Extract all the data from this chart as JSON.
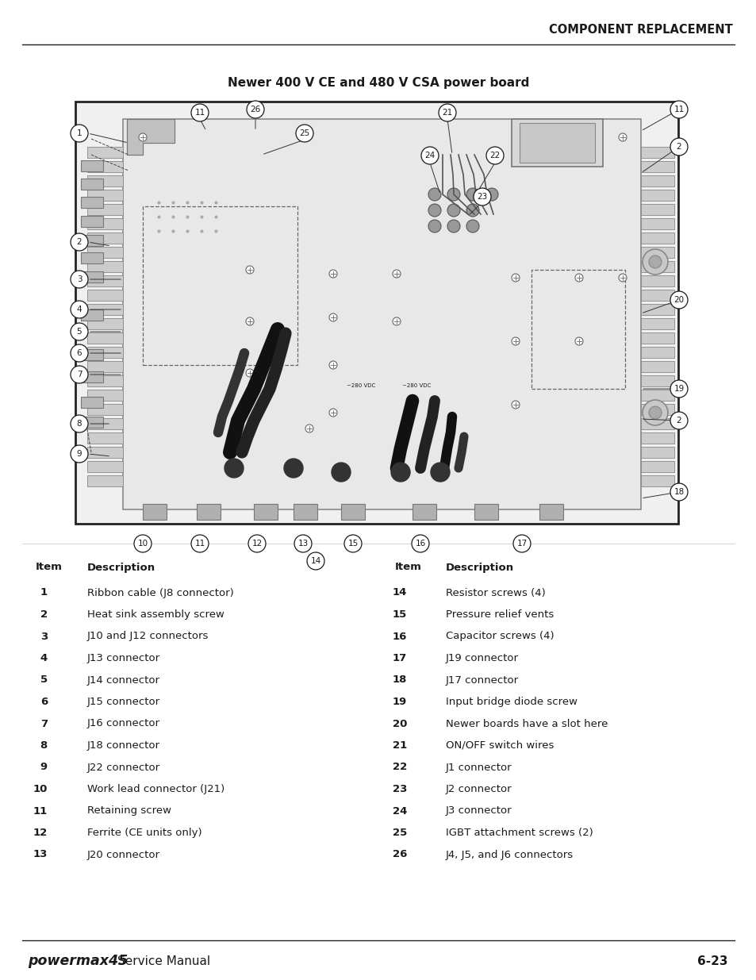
{
  "page_title": "COMPONENT REPLACEMENT",
  "diagram_title": "Newer 400 V CE and 480 V CSA power board",
  "items_left": [
    {
      "num": "1",
      "desc": "Ribbon cable (J8 connector)"
    },
    {
      "num": "2",
      "desc": "Heat sink assembly screw"
    },
    {
      "num": "3",
      "desc": "J10 and J12 connectors"
    },
    {
      "num": "4",
      "desc": "J13 connector"
    },
    {
      "num": "5",
      "desc": "J14 connector"
    },
    {
      "num": "6",
      "desc": "J15 connector"
    },
    {
      "num": "7",
      "desc": "J16 connector"
    },
    {
      "num": "8",
      "desc": "J18 connector"
    },
    {
      "num": "9",
      "desc": "J22 connector"
    },
    {
      "num": "10",
      "desc": "Work lead connector (J21)"
    },
    {
      "num": "11",
      "desc": "Retaining screw"
    },
    {
      "num": "12",
      "desc": "Ferrite (CE units only)"
    },
    {
      "num": "13",
      "desc": "J20 connector"
    }
  ],
  "items_right": [
    {
      "num": "14",
      "desc": "Resistor screws (4)"
    },
    {
      "num": "15",
      "desc": "Pressure relief vents"
    },
    {
      "num": "16",
      "desc": "Capacitor screws (4)"
    },
    {
      "num": "17",
      "desc": "J19 connector"
    },
    {
      "num": "18",
      "desc": "J17 connector"
    },
    {
      "num": "19",
      "desc": "Input bridge diode screw"
    },
    {
      "num": "20",
      "desc": "Newer boards have a slot here"
    },
    {
      "num": "21",
      "desc": "ON/OFF switch wires"
    },
    {
      "num": "22",
      "desc": "J1 connector"
    },
    {
      "num": "23",
      "desc": "J2 connector"
    },
    {
      "num": "24",
      "desc": "J3 connector"
    },
    {
      "num": "25",
      "desc": "IGBT attachment screws (2)"
    },
    {
      "num": "26",
      "desc": "J4, J5, and J6 connectors"
    }
  ],
  "footer_brand": "powermax45",
  "footer_text": "Service Manual",
  "footer_page": "6-23",
  "text_color": "#1a1a1a",
  "bg_color": "#ffffff",
  "diagram_bg": "#f5f5f5",
  "board_fill": "#e0e0e0",
  "board_inner_fill": "#dedede",
  "fin_fill": "#cccccc",
  "connector_fill": "#bbbbbb",
  "wire_color": "#111111",
  "line_color": "#222222"
}
